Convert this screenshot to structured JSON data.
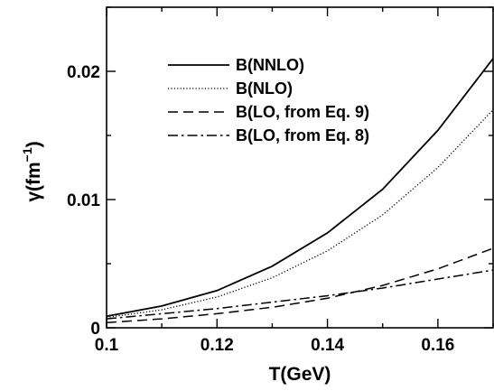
{
  "chart_data": {
    "type": "line",
    "xlabel": "T(GeV)",
    "ylabel_main": "γ(fm",
    "ylabel_exp": "−1",
    "ylabel_close": ")",
    "xlim": [
      0.1,
      0.17
    ],
    "ylim": [
      0,
      0.025
    ],
    "xticks": [
      {
        "value": 0.1,
        "label": "0.1"
      },
      {
        "value": 0.12,
        "label": "0.12"
      },
      {
        "value": 0.14,
        "label": "0.14"
      },
      {
        "value": 0.16,
        "label": "0.16"
      }
    ],
    "yticks": [
      {
        "value": 0,
        "label": "0"
      },
      {
        "value": 0.01,
        "label": "0.01"
      },
      {
        "value": 0.02,
        "label": "0.02"
      }
    ],
    "minor_xticks": [
      0.11,
      0.13,
      0.15,
      0.17
    ],
    "minor_yticks": [
      0.005,
      0.015,
      0.025
    ],
    "grid": false,
    "legend_position": "top-center",
    "x": [
      0.1,
      0.11,
      0.12,
      0.13,
      0.14,
      0.15,
      0.16,
      0.17
    ],
    "series": [
      {
        "name": "B(NNLO)",
        "style": "solid",
        "values": [
          0.0009,
          0.0017,
          0.0029,
          0.0048,
          0.0074,
          0.0108,
          0.0154,
          0.021
        ]
      },
      {
        "name": "B(NLO)",
        "style": "dotted",
        "values": [
          0.0008,
          0.0014,
          0.0024,
          0.0039,
          0.006,
          0.0088,
          0.0125,
          0.017
        ]
      },
      {
        "name": "B(LO, from Eq. 9)",
        "style": "dashed",
        "values": [
          0.0004,
          0.0007,
          0.0011,
          0.0016,
          0.0023,
          0.0033,
          0.0046,
          0.0062
        ]
      },
      {
        "name": "B(LO, from Eq. 8)",
        "style": "dashdot",
        "values": [
          0.0007,
          0.0011,
          0.0015,
          0.002,
          0.0025,
          0.0031,
          0.0038,
          0.0045
        ]
      }
    ]
  }
}
